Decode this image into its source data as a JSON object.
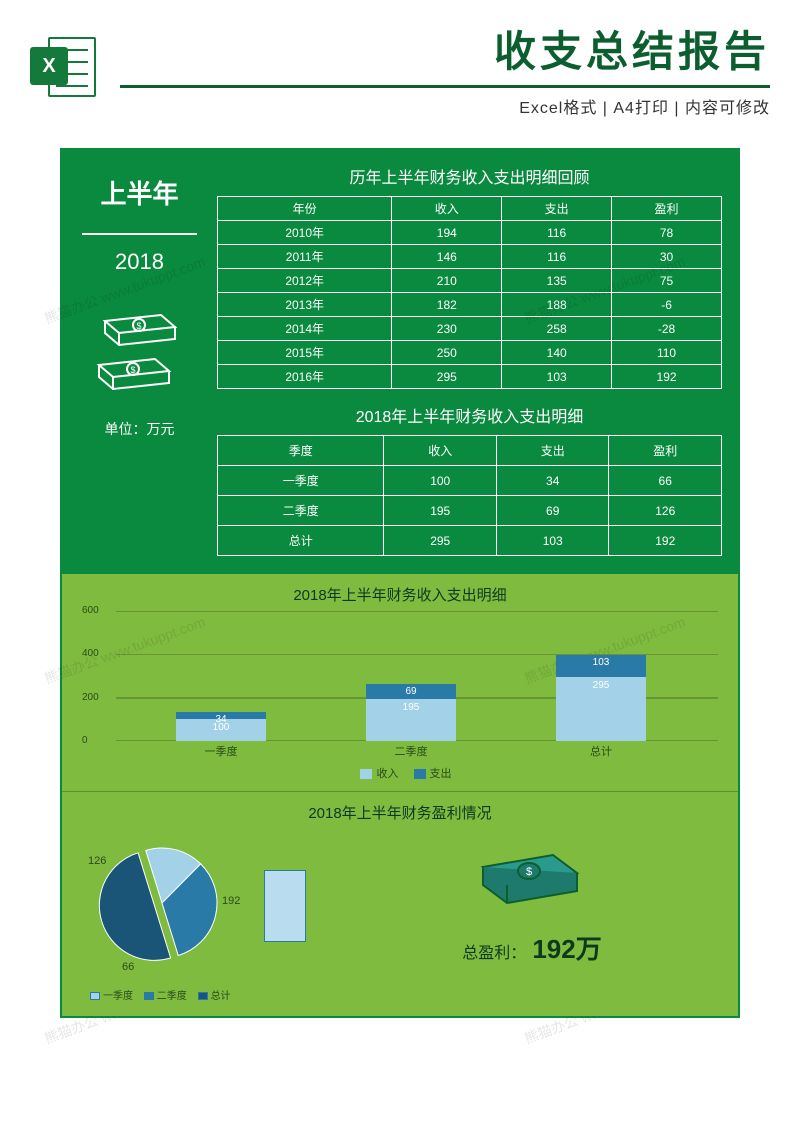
{
  "header": {
    "excel_letter": "X",
    "main_title": "收支总结报告",
    "subtitle": "Excel格式 | A4打印 | 内容可修改"
  },
  "left": {
    "halfyear": "上半年",
    "year": "2018",
    "unit": "单位：万元"
  },
  "history_table": {
    "title": "历年上半年财务收入支出明细回顾",
    "columns": [
      "年份",
      "收入",
      "支出",
      "盈利"
    ],
    "rows": [
      [
        "2010年",
        "194",
        "116",
        "78"
      ],
      [
        "2011年",
        "146",
        "116",
        "30"
      ],
      [
        "2012年",
        "210",
        "135",
        "75"
      ],
      [
        "2013年",
        "182",
        "188",
        "-6"
      ],
      [
        "2014年",
        "230",
        "258",
        "-28"
      ],
      [
        "2015年",
        "250",
        "140",
        "110"
      ],
      [
        "2016年",
        "295",
        "103",
        "192"
      ]
    ]
  },
  "quarter_table": {
    "title": "2018年上半年财务收入支出明细",
    "columns": [
      "季度",
      "收入",
      "支出",
      "盈利"
    ],
    "rows": [
      [
        "一季度",
        "100",
        "34",
        "66"
      ],
      [
        "二季度",
        "195",
        "69",
        "126"
      ],
      [
        "总计",
        "295",
        "103",
        "192"
      ]
    ]
  },
  "bar_chart": {
    "title": "2018年上半年财务收入支出明细",
    "ylim": [
      0,
      600
    ],
    "ytick_step": 200,
    "yticks": [
      "0",
      "200",
      "400",
      "600"
    ],
    "categories": [
      "一季度",
      "二季度",
      "总计"
    ],
    "income": [
      100,
      195,
      295
    ],
    "expense": [
      34,
      69,
      103
    ],
    "income_color": "#a3d1e8",
    "expense_color": "#2a7aa8",
    "legend": [
      "收入",
      "支出"
    ],
    "background": "#7fbb3f",
    "grid_color": "#5a9030"
  },
  "pie_chart": {
    "title": "2018年上半年财务盈利情况",
    "slices": [
      {
        "label": "一季度",
        "value": 66,
        "color": "#a3d1e8"
      },
      {
        "label": "二季度",
        "value": 126,
        "color": "#2a7aa8"
      },
      {
        "label": "总计",
        "value": 192,
        "color": "#1a5578"
      }
    ],
    "pulled_label": "192",
    "labels_on_chart": {
      "q1": "66",
      "q2": "126",
      "total": "192"
    },
    "legend": [
      "一季度",
      "二季度",
      "总计"
    ],
    "profit_label": "总盈利：",
    "profit_value": "192万"
  },
  "colors": {
    "dark_green": "#0a8a3f",
    "light_green": "#7fbb3f",
    "title_green": "#0d5e2f"
  },
  "watermark": "熊猫办公 www.tukuppt.com"
}
